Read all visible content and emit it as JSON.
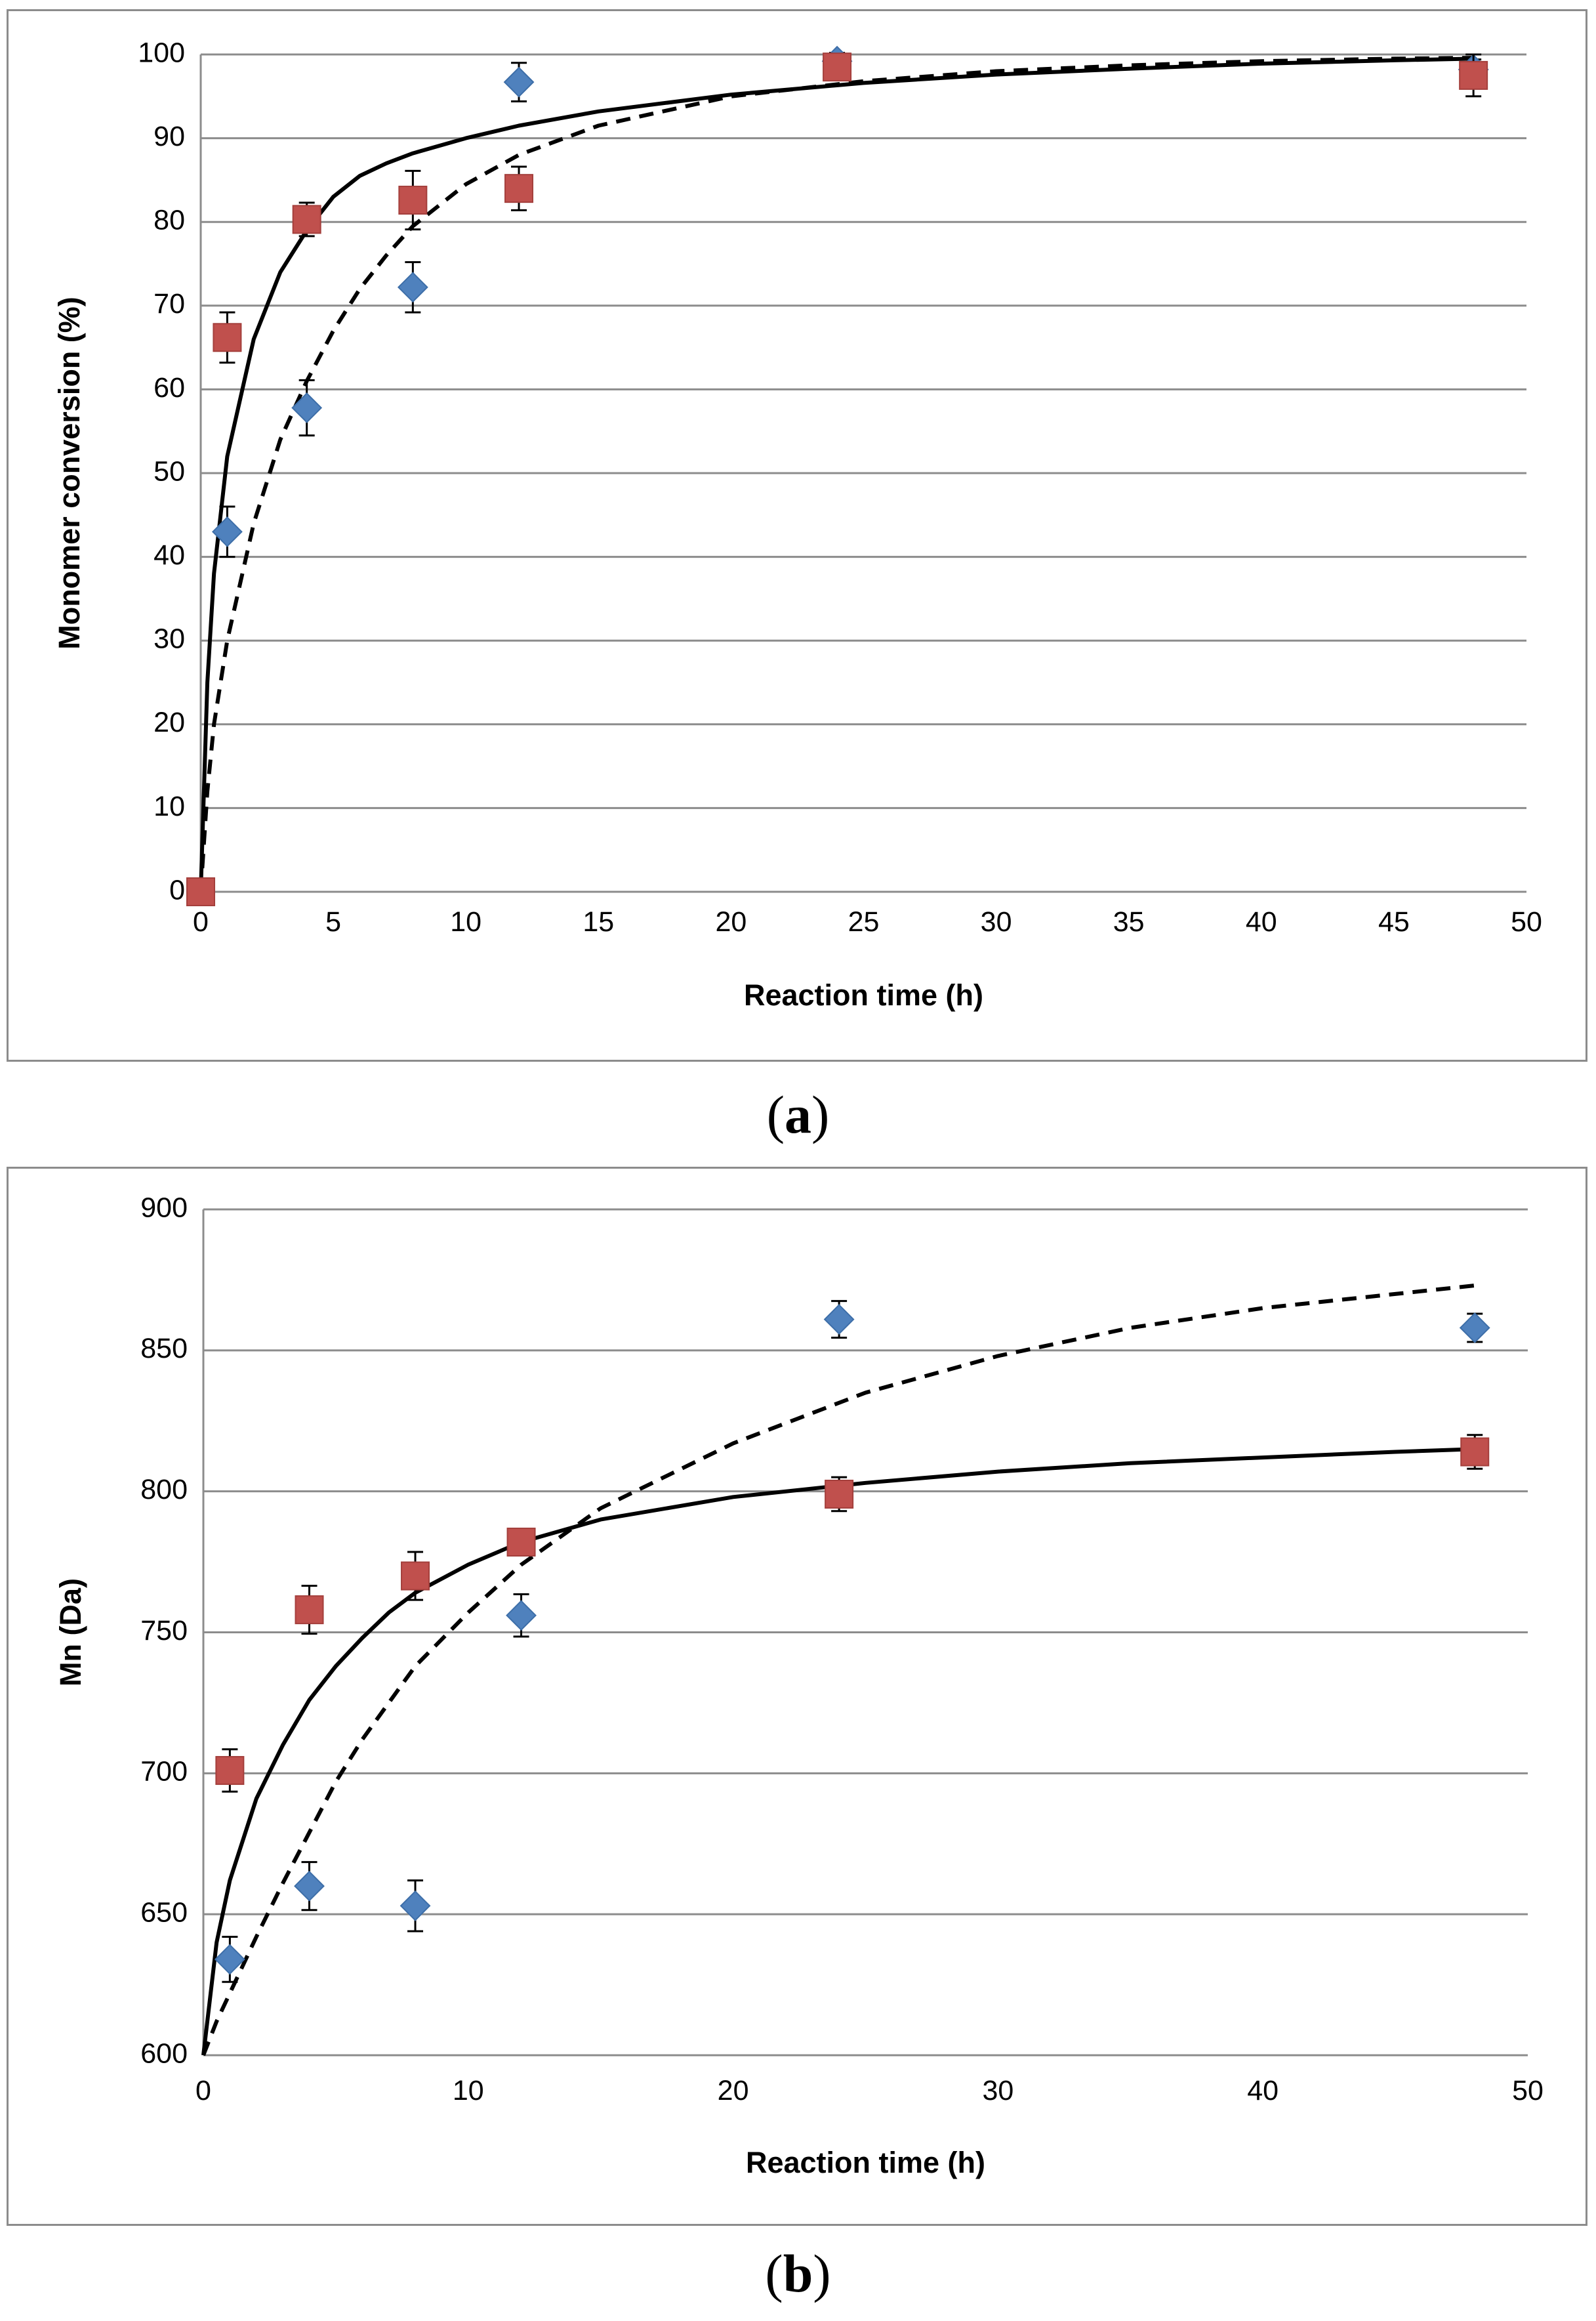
{
  "chart_data": [
    {
      "id": "a",
      "type": "scatter",
      "panel_label": "a",
      "title": "",
      "xlabel": "Reaction time (h)",
      "ylabel": "Monomer conversion (%)",
      "xlim": [
        0,
        50
      ],
      "ylim": [
        0,
        100
      ],
      "x_ticks": [
        0,
        5,
        10,
        15,
        20,
        25,
        30,
        35,
        40,
        45,
        50
      ],
      "y_ticks": [
        0,
        10,
        20,
        30,
        40,
        50,
        60,
        70,
        80,
        90,
        100
      ],
      "grid": true,
      "series": [
        {
          "name": "blue-diamond",
          "marker": "diamond",
          "color": "#4f81bd",
          "points": [
            {
              "x": 1,
              "y": 43,
              "err": 3
            },
            {
              "x": 4,
              "y": 57.8,
              "err": 3.3
            },
            {
              "x": 8,
              "y": 72.2,
              "err": 3
            },
            {
              "x": 12,
              "y": 96.7,
              "err": 2.3
            },
            {
              "x": 24,
              "y": 99.2,
              "err": 1
            },
            {
              "x": 48,
              "y": 98.2,
              "err": 1.2
            }
          ]
        },
        {
          "name": "red-square",
          "marker": "square",
          "color": "#c0504d",
          "points": [
            {
              "x": 0,
              "y": 0,
              "err": 0
            },
            {
              "x": 1,
              "y": 66.2,
              "err": 3
            },
            {
              "x": 4,
              "y": 80.3,
              "err": 2
            },
            {
              "x": 8,
              "y": 82.6,
              "err": 3.5
            },
            {
              "x": 12,
              "y": 84,
              "err": 2.6
            },
            {
              "x": 24,
              "y": 98.5,
              "err": 1.3
            },
            {
              "x": 48,
              "y": 97.5,
              "err": 2.5
            }
          ]
        }
      ],
      "fits": [
        {
          "name": "solid-fit",
          "style": "solid",
          "color": "#000000",
          "points": [
            [
              0,
              0
            ],
            [
              0.25,
              25
            ],
            [
              0.5,
              38
            ],
            [
              1,
              52
            ],
            [
              2,
              66
            ],
            [
              3,
              74
            ],
            [
              4,
              79
            ],
            [
              5,
              83
            ],
            [
              6,
              85.5
            ],
            [
              7,
              87
            ],
            [
              8,
              88.2
            ],
            [
              10,
              90
            ],
            [
              12,
              91.5
            ],
            [
              15,
              93.2
            ],
            [
              20,
              95.2
            ],
            [
              25,
              96.6
            ],
            [
              30,
              97.6
            ],
            [
              35,
              98.3
            ],
            [
              40,
              98.9
            ],
            [
              45,
              99.3
            ],
            [
              48,
              99.5
            ]
          ]
        },
        {
          "name": "dashed-fit",
          "style": "dashed",
          "color": "#000000",
          "points": [
            [
              0,
              0
            ],
            [
              0.25,
              12
            ],
            [
              0.5,
              20
            ],
            [
              1,
              30
            ],
            [
              2,
              44
            ],
            [
              3,
              54
            ],
            [
              4,
              61
            ],
            [
              5,
              67
            ],
            [
              6,
              72
            ],
            [
              7,
              76
            ],
            [
              8,
              79.5
            ],
            [
              10,
              84.5
            ],
            [
              12,
              88
            ],
            [
              15,
              91.5
            ],
            [
              20,
              95
            ],
            [
              25,
              96.8
            ],
            [
              30,
              98
            ],
            [
              35,
              98.7
            ],
            [
              40,
              99.2
            ],
            [
              45,
              99.5
            ],
            [
              48,
              99.6
            ]
          ]
        }
      ]
    },
    {
      "id": "b",
      "type": "scatter",
      "panel_label": "b",
      "title": "",
      "xlabel": "Reaction time (h)",
      "ylabel": "Mn (Da)",
      "xlim": [
        0,
        50
      ],
      "ylim": [
        600,
        900
      ],
      "x_ticks": [
        0,
        10,
        20,
        30,
        40,
        50
      ],
      "y_ticks": [
        600,
        650,
        700,
        750,
        800,
        850,
        900
      ],
      "grid": true,
      "series": [
        {
          "name": "blue-diamond",
          "marker": "diamond",
          "color": "#4f81bd",
          "points": [
            {
              "x": 1,
              "y": 634,
              "err": 8
            },
            {
              "x": 4,
              "y": 660,
              "err": 8.5
            },
            {
              "x": 8,
              "y": 653,
              "err": 9
            },
            {
              "x": 12,
              "y": 756,
              "err": 7.5
            },
            {
              "x": 24,
              "y": 861,
              "err": 6.5
            },
            {
              "x": 48,
              "y": 858,
              "err": 5
            }
          ]
        },
        {
          "name": "red-square",
          "marker": "square",
          "color": "#c0504d",
          "points": [
            {
              "x": 1,
              "y": 701,
              "err": 7.5
            },
            {
              "x": 4,
              "y": 758,
              "err": 8.5
            },
            {
              "x": 8,
              "y": 770,
              "err": 8.5
            },
            {
              "x": 12,
              "y": 782,
              "err": 4
            },
            {
              "x": 24,
              "y": 799,
              "err": 6
            },
            {
              "x": 48,
              "y": 814,
              "err": 6
            }
          ]
        }
      ],
      "fits": [
        {
          "name": "solid-fit",
          "style": "solid",
          "color": "#000000",
          "points": [
            [
              0,
              600
            ],
            [
              0.5,
              640
            ],
            [
              1,
              662
            ],
            [
              2,
              691
            ],
            [
              3,
              710
            ],
            [
              4,
              726
            ],
            [
              5,
              738
            ],
            [
              6,
              748
            ],
            [
              7,
              757
            ],
            [
              8,
              764
            ],
            [
              10,
              774
            ],
            [
              12,
              782
            ],
            [
              15,
              790
            ],
            [
              20,
              798
            ],
            [
              25,
              803
            ],
            [
              30,
              807
            ],
            [
              35,
              810
            ],
            [
              40,
              812
            ],
            [
              45,
              814
            ],
            [
              48,
              815
            ]
          ]
        },
        {
          "name": "dashed-fit",
          "style": "dashed",
          "color": "#000000",
          "points": [
            [
              0,
              600
            ],
            [
              0.5,
              612
            ],
            [
              1,
              622
            ],
            [
              2,
              642
            ],
            [
              3,
              661
            ],
            [
              4,
              679
            ],
            [
              5,
              697
            ],
            [
              6,
              712
            ],
            [
              8,
              738
            ],
            [
              10,
              757
            ],
            [
              12,
              774
            ],
            [
              15,
              794
            ],
            [
              20,
              817
            ],
            [
              25,
              835
            ],
            [
              30,
              848
            ],
            [
              35,
              858
            ],
            [
              40,
              865
            ],
            [
              45,
              870
            ],
            [
              48,
              873
            ]
          ]
        }
      ]
    }
  ]
}
